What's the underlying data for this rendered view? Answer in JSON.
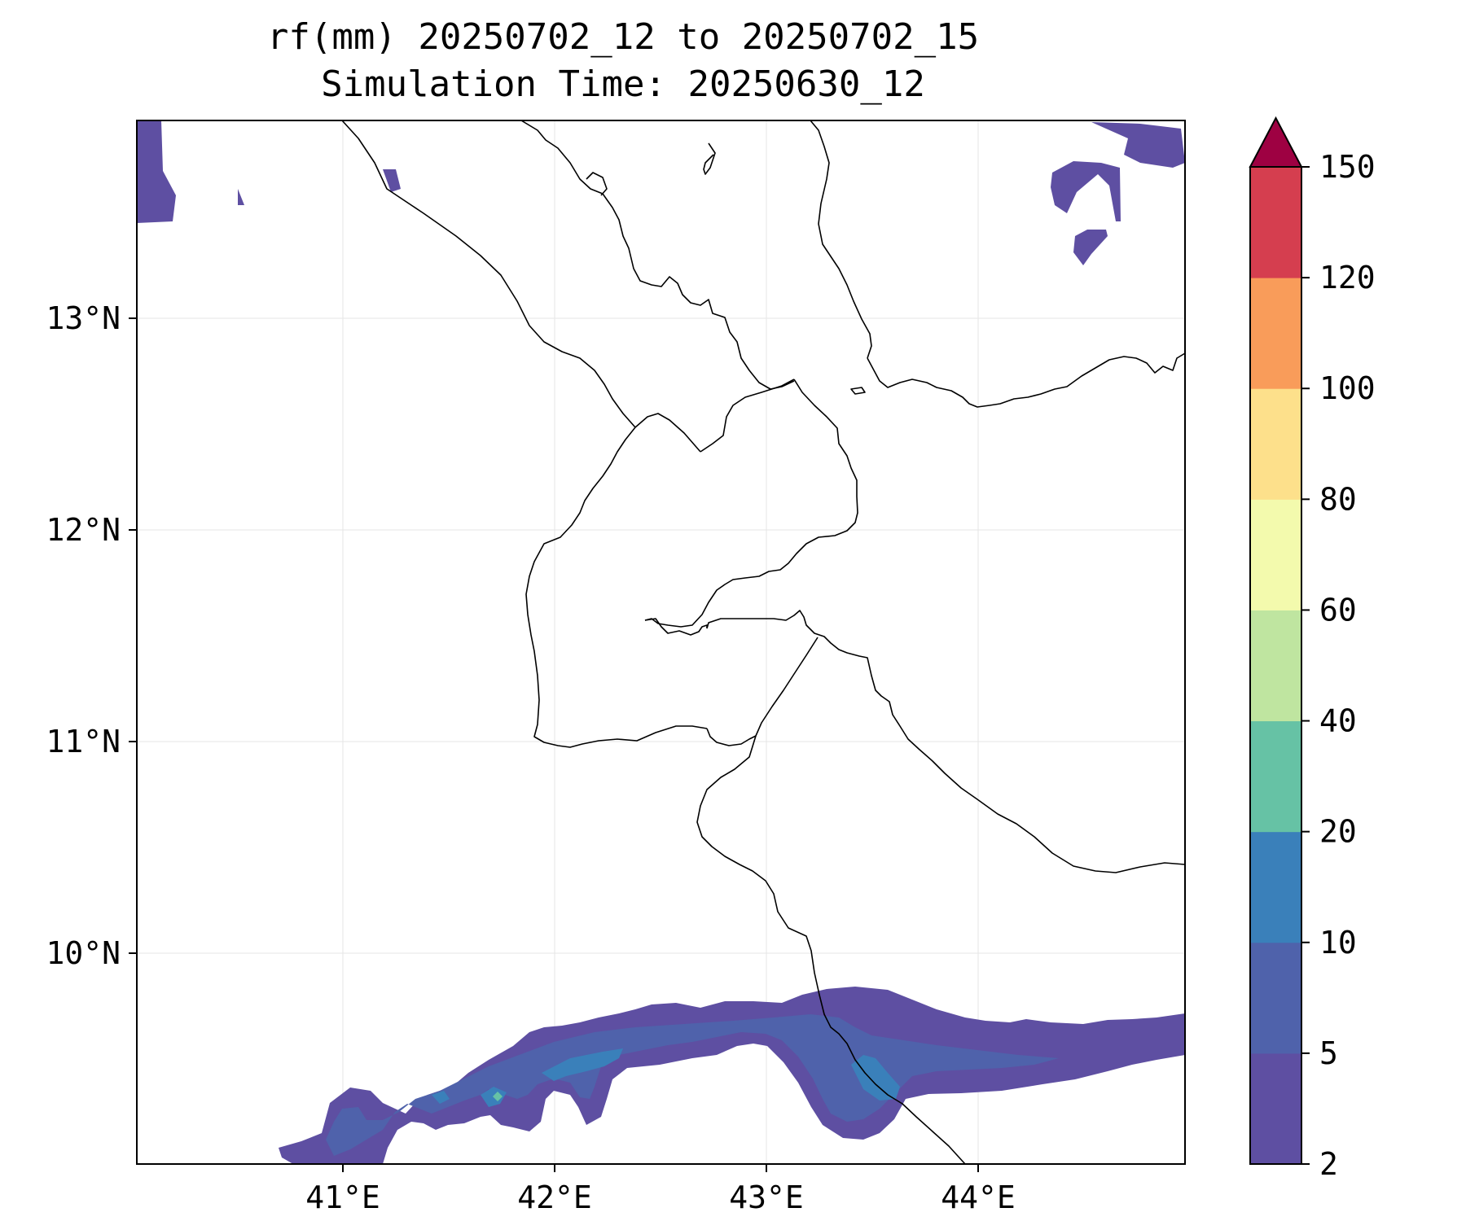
{
  "title": {
    "line1": "rf(mm) 20250702_12 to 20250702_15",
    "line2": "Simulation Time: 20250630_12"
  },
  "map": {
    "lon_ticks": [
      "41°E",
      "42°E",
      "43°E",
      "44°E"
    ],
    "lat_ticks": [
      "13°N",
      "12°N",
      "11°N",
      "10°N"
    ],
    "grid": true
  },
  "colorbar": {
    "levels": [
      "2",
      "5",
      "10",
      "20",
      "40",
      "60",
      "80",
      "100",
      "120",
      "150"
    ],
    "colors": [
      "#5e4fa2",
      "#4f62ab",
      "#3a80ba",
      "#66c2a5",
      "#bfe5a0",
      "#f3faad",
      "#fde08b",
      "#f99c5a",
      "#d53e4f",
      "#9e0142"
    ],
    "extend": "max"
  },
  "rain_cells": [
    {
      "level": "2-5",
      "color": "#5e4fa2"
    },
    {
      "level": "5-10",
      "color": "#4f62ab"
    },
    {
      "level": "10-20",
      "color": "#3a80ba"
    },
    {
      "level": "20-40",
      "color": "#66c2a5"
    }
  ]
}
